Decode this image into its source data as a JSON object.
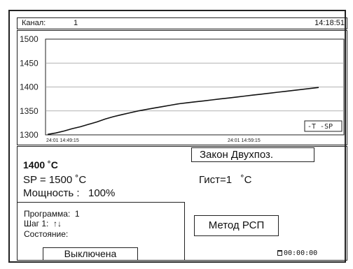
{
  "header": {
    "channel_label": "Канал:",
    "channel_value": "1",
    "time": "14:18:51"
  },
  "chart_data": {
    "type": "line",
    "ylim": [
      1300,
      1500
    ],
    "yticks": [
      "1500",
      "1450",
      "1400",
      "1350",
      "1300"
    ],
    "xticks": [
      "24:01 14:49:15",
      "24:01 14:59:15"
    ],
    "legend_label": "-T -SP",
    "grid": true,
    "series": [
      {
        "x": [
          0,
          1,
          2,
          3,
          4,
          5,
          6,
          7,
          8,
          9,
          10,
          11,
          12,
          13,
          14,
          15,
          16,
          17,
          18,
          19,
          20,
          21,
          22,
          23,
          24,
          25,
          26,
          27,
          28,
          29,
          30,
          31,
          32,
          33
        ],
        "values": [
          1301,
          1304,
          1308,
          1313,
          1317,
          1322,
          1327,
          1333,
          1338,
          1342,
          1346,
          1350,
          1353,
          1356,
          1359,
          1362,
          1365,
          1367,
          1369,
          1371,
          1373,
          1375,
          1377,
          1379,
          1381,
          1383,
          1385,
          1387,
          1389,
          1391,
          1393,
          1395,
          1397,
          1399
        ]
      }
    ]
  },
  "status": {
    "temperature": "1400 ˚C",
    "setpoint": "SP = 1500 ˚C",
    "power": "Мощность :   100%"
  },
  "control": {
    "law": "Закон Двухпоз.",
    "hysteresis": "Гист=1   ˚C",
    "method": "Метод РСП"
  },
  "program": {
    "program_line": "Программа:  1",
    "step_line": "Шаг 1:  ↑↓",
    "state_label": "Состояние:",
    "state_value": "Выключена"
  },
  "timer": {
    "icon": "timer-icon",
    "value": "00:00:00"
  }
}
